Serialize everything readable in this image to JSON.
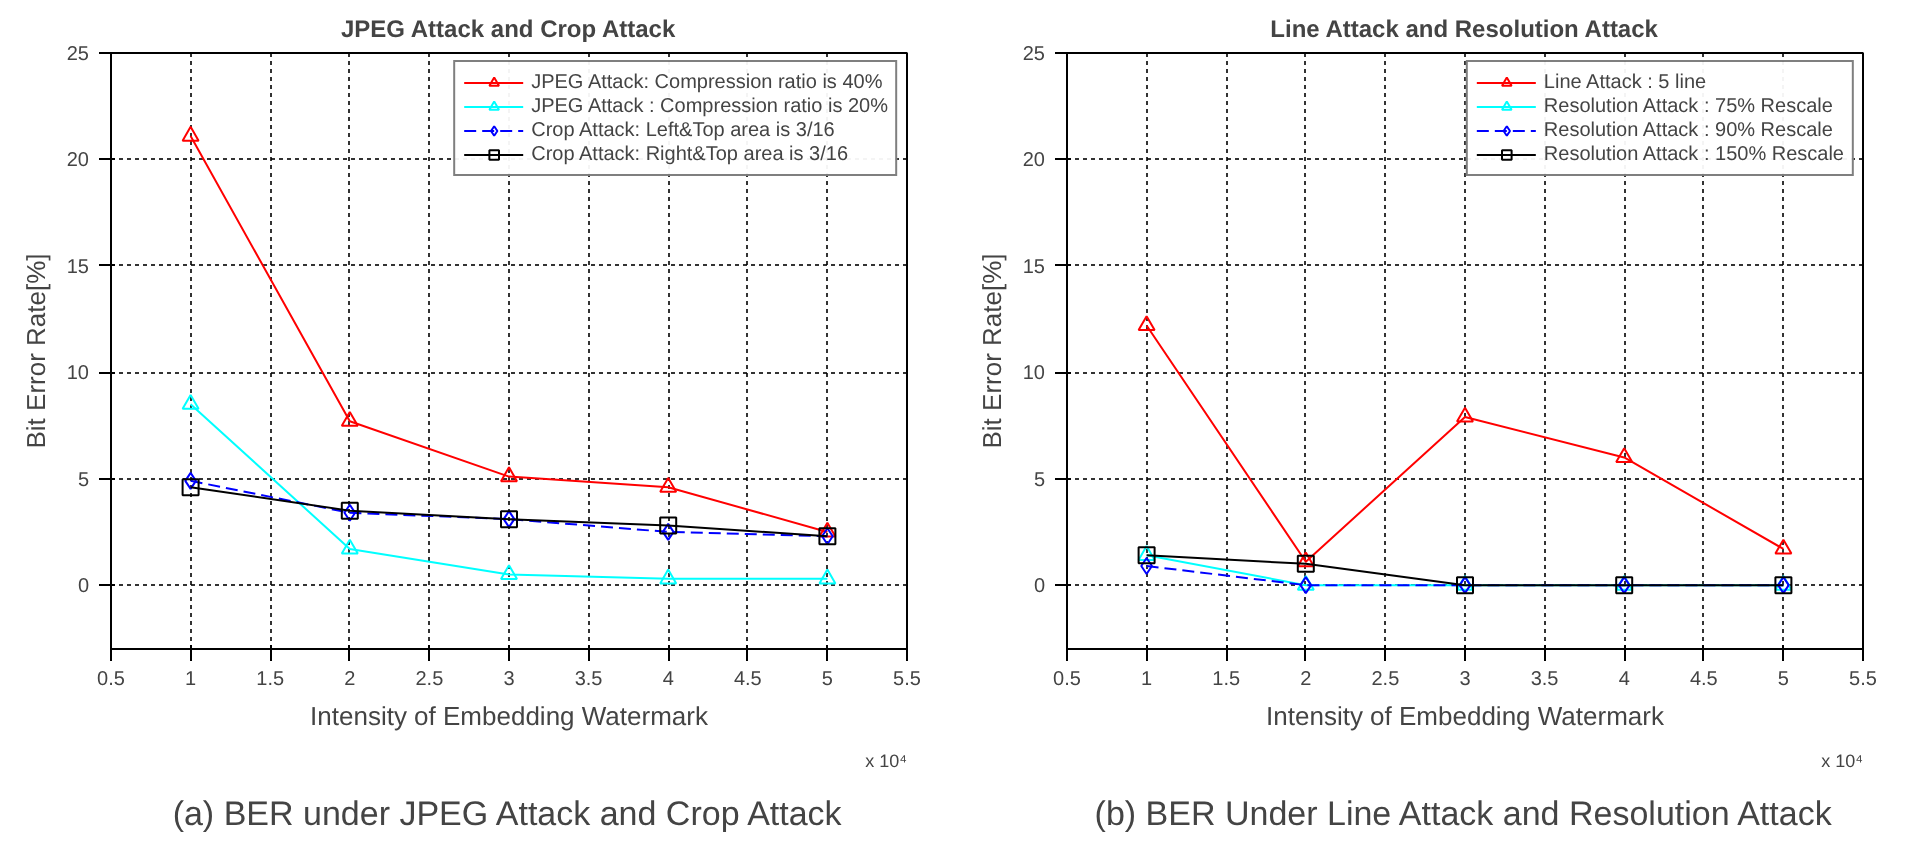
{
  "chart_data": [
    {
      "type": "line",
      "title": "JPEG Attack and Crop Attack",
      "xlabel": "Intensity of Embedding Watermark",
      "ylabel": "Bit Error Rate[%]",
      "x": [
        1,
        2,
        3,
        4,
        5
      ],
      "series": [
        {
          "name": "JPEG Attack: Compression ratio is 40%",
          "color": "#ff0000",
          "marker": "triangle",
          "line_style": "solid",
          "values": [
            21.1,
            7.7,
            5.1,
            4.6,
            2.5
          ]
        },
        {
          "name": "JPEG Attack : Compression ratio is 20%",
          "color": "#00ffff",
          "marker": "triangle",
          "line_style": "solid",
          "values": [
            8.5,
            1.7,
            0.5,
            0.3,
            0.3
          ]
        },
        {
          "name": "Crop Attack: Left&Top area is 3/16",
          "color": "#0000ff",
          "marker": "diamond",
          "line_style": "dashed",
          "values": [
            4.9,
            3.4,
            3.1,
            2.5,
            2.3
          ]
        },
        {
          "name": "Crop Attack: Right&Top area is 3/16",
          "color": "#000000",
          "marker": "square",
          "line_style": "solid",
          "values": [
            4.6,
            3.5,
            3.1,
            2.8,
            2.3
          ]
        }
      ],
      "xlim": [
        0.5,
        5.5
      ],
      "xticks": [
        0.5,
        1,
        1.5,
        2,
        2.5,
        3,
        3.5,
        4,
        4.5,
        5,
        5.5
      ],
      "ylim": [
        -3,
        25
      ],
      "yticks": [
        0,
        5,
        10,
        15,
        20,
        25
      ],
      "grid": true,
      "legend": "top right",
      "annotations": [
        "x 10⁴",
        "(a) BER under JPEG Attack and Crop Attack"
      ]
    },
    {
      "type": "line",
      "title": "Line Attack and Resolution Attack",
      "xlabel": "Intensity of Embedding Watermark",
      "ylabel": "Bit Error Rate[%]",
      "x": [
        1,
        2,
        3,
        4,
        5
      ],
      "series": [
        {
          "name": "Line Attack : 5 line",
          "color": "#ff0000",
          "marker": "triangle",
          "line_style": "solid",
          "values": [
            12.2,
            1.1,
            7.9,
            6.0,
            1.7
          ]
        },
        {
          "name": "Resolution Attack : 75% Rescale",
          "color": "#00ffff",
          "marker": "triangle",
          "line_style": "solid",
          "values": [
            1.4,
            0,
            0,
            0,
            0
          ]
        },
        {
          "name": "Resolution Attack : 90% Rescale",
          "color": "#0000ff",
          "marker": "diamond",
          "line_style": "dashed",
          "values": [
            0.9,
            0,
            0,
            0,
            0
          ]
        },
        {
          "name": "Resolution Attack : 150% Rescale",
          "color": "#000000",
          "marker": "square",
          "line_style": "solid",
          "values": [
            1.4,
            1.0,
            0,
            0,
            0
          ]
        }
      ],
      "xlim": [
        0.5,
        5.5
      ],
      "xticks": [
        0.5,
        1,
        1.5,
        2,
        2.5,
        3,
        3.5,
        4,
        4.5,
        5,
        5.5
      ],
      "ylim": [
        -3,
        25
      ],
      "yticks": [
        0,
        5,
        10,
        15,
        20,
        25
      ],
      "grid": true,
      "legend": "top right",
      "annotations": [
        "x 10⁴",
        "(b) BER Under Line Attack and Resolution Attack"
      ]
    }
  ]
}
